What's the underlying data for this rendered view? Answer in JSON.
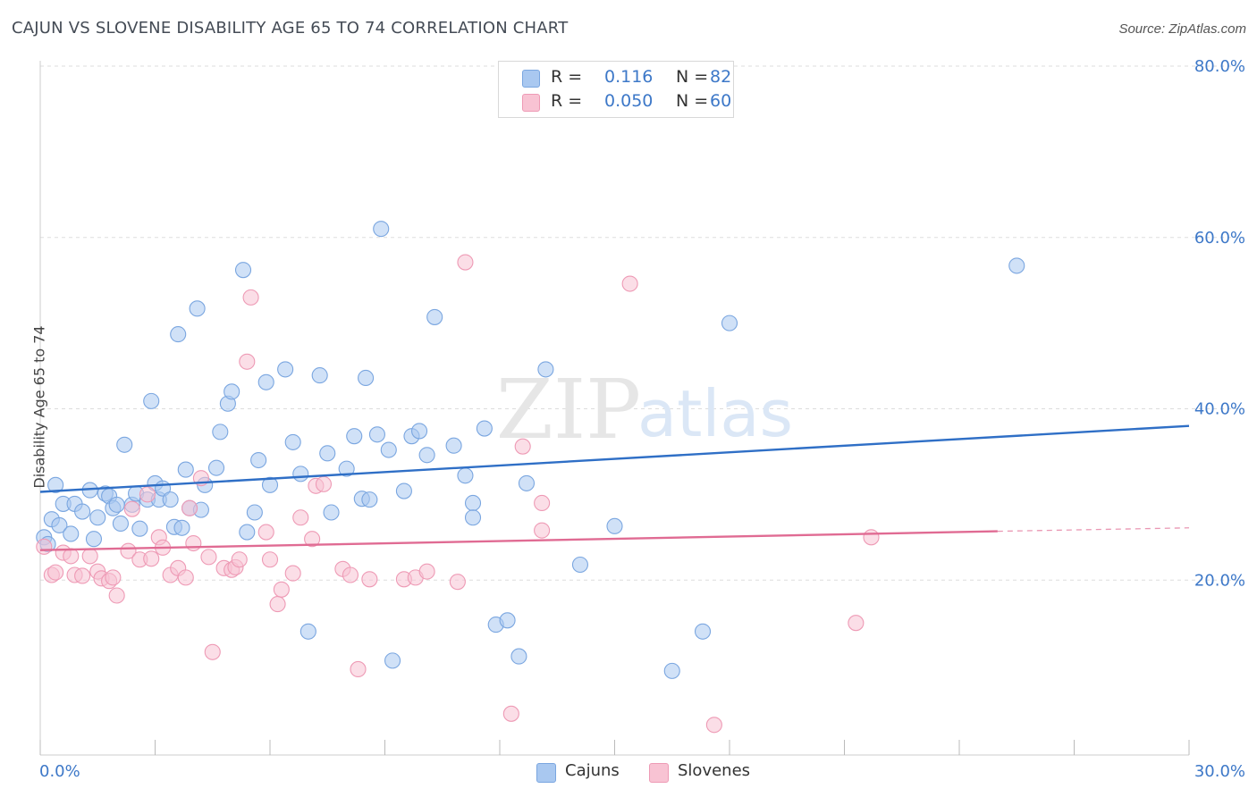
{
  "title": "CAJUN VS SLOVENE DISABILITY AGE 65 TO 74 CORRELATION CHART",
  "source": "Source: ZipAtlas.com",
  "watermark": {
    "zip": "ZIP",
    "atlas": "atlas"
  },
  "legend": {
    "rows": [
      {
        "r_label": "R =",
        "r_value": "0.116",
        "n_label": "N =",
        "n_value": "82",
        "color": "#a9c8f0",
        "border": "#7aa6e0"
      },
      {
        "r_label": "R =",
        "r_value": "0.050",
        "n_label": "N =",
        "n_value": "60",
        "color": "#f8c3d3",
        "border": "#ee9ab5"
      }
    ]
  },
  "bottom_legend": [
    {
      "label": "Cajuns",
      "color": "#a9c8f0",
      "border": "#7aa6e0"
    },
    {
      "label": "Slovenes",
      "color": "#f8c3d3",
      "border": "#ee9ab5"
    }
  ],
  "chart_data": {
    "type": "scatter",
    "title": "CAJUN VS SLOVENE DISABILITY AGE 65 TO 74 CORRELATION CHART",
    "xlabel": "",
    "ylabel": "Disability Age 65 to 74",
    "xlim": [
      0,
      30
    ],
    "ylim": [
      0,
      80
    ],
    "x_tick_labels": [
      "0.0%",
      "30.0%"
    ],
    "y_ticks": [
      20,
      40,
      60,
      80
    ],
    "y_tick_labels": [
      "20.0%",
      "40.0%",
      "60.0%",
      "80.0%"
    ],
    "grid": true,
    "legend_position": "top-center",
    "series": [
      {
        "name": "Cajuns",
        "color": "#7aa6e0",
        "fill": "#a9c8f0",
        "trend": {
          "x": [
            0,
            30
          ],
          "y": [
            30.3,
            38.0
          ],
          "color": "#2f6fc6"
        },
        "points": [
          [
            0.1,
            25.0
          ],
          [
            0.2,
            24.2
          ],
          [
            0.3,
            27.1
          ],
          [
            0.4,
            31.1
          ],
          [
            0.5,
            26.4
          ],
          [
            0.6,
            28.9
          ],
          [
            0.8,
            25.4
          ],
          [
            0.9,
            28.9
          ],
          [
            1.1,
            28.0
          ],
          [
            1.3,
            30.5
          ],
          [
            1.4,
            24.8
          ],
          [
            1.5,
            27.3
          ],
          [
            1.7,
            30.1
          ],
          [
            1.8,
            29.8
          ],
          [
            1.9,
            28.4
          ],
          [
            2.0,
            28.8
          ],
          [
            2.1,
            26.6
          ],
          [
            2.2,
            35.8
          ],
          [
            2.4,
            28.8
          ],
          [
            2.5,
            30.1
          ],
          [
            2.6,
            26.0
          ],
          [
            2.8,
            29.4
          ],
          [
            2.9,
            40.9
          ],
          [
            3.0,
            31.3
          ],
          [
            3.1,
            29.4
          ],
          [
            3.2,
            30.7
          ],
          [
            3.4,
            29.4
          ],
          [
            3.5,
            26.2
          ],
          [
            3.6,
            48.7
          ],
          [
            3.7,
            26.1
          ],
          [
            3.8,
            32.9
          ],
          [
            3.9,
            28.4
          ],
          [
            4.1,
            51.7
          ],
          [
            4.2,
            28.2
          ],
          [
            4.3,
            31.1
          ],
          [
            4.6,
            33.1
          ],
          [
            4.7,
            37.3
          ],
          [
            4.9,
            40.6
          ],
          [
            5.0,
            42.0
          ],
          [
            5.3,
            56.2
          ],
          [
            5.4,
            25.6
          ],
          [
            5.6,
            27.9
          ],
          [
            5.7,
            34.0
          ],
          [
            5.9,
            43.1
          ],
          [
            6.0,
            31.1
          ],
          [
            6.4,
            44.6
          ],
          [
            6.6,
            36.1
          ],
          [
            6.8,
            32.4
          ],
          [
            7.0,
            14.0
          ],
          [
            7.3,
            43.9
          ],
          [
            7.5,
            34.8
          ],
          [
            7.6,
            27.9
          ],
          [
            8.0,
            33.0
          ],
          [
            8.2,
            36.8
          ],
          [
            8.4,
            29.5
          ],
          [
            8.5,
            43.6
          ],
          [
            8.6,
            29.4
          ],
          [
            8.8,
            37.0
          ],
          [
            8.9,
            61.0
          ],
          [
            9.1,
            35.2
          ],
          [
            9.2,
            10.6
          ],
          [
            9.5,
            30.4
          ],
          [
            9.7,
            36.8
          ],
          [
            9.9,
            37.4
          ],
          [
            10.1,
            34.6
          ],
          [
            10.3,
            50.7
          ],
          [
            10.8,
            35.7
          ],
          [
            11.1,
            32.2
          ],
          [
            11.3,
            29.0
          ],
          [
            11.3,
            27.3
          ],
          [
            11.6,
            37.7
          ],
          [
            11.9,
            14.8
          ],
          [
            12.2,
            15.3
          ],
          [
            12.5,
            11.1
          ],
          [
            12.7,
            31.3
          ],
          [
            13.2,
            44.6
          ],
          [
            14.1,
            21.8
          ],
          [
            15.0,
            26.3
          ],
          [
            16.5,
            9.4
          ],
          [
            17.3,
            14.0
          ],
          [
            18.0,
            50.0
          ],
          [
            25.5,
            56.7
          ]
        ]
      },
      {
        "name": "Slovenes",
        "color": "#ee9ab5",
        "fill": "#f8c3d3",
        "trend": {
          "x": [
            0,
            25
          ],
          "y": [
            23.5,
            25.7
          ],
          "color": "#e06b93"
        },
        "trend_dashed": {
          "x": [
            25,
            30
          ],
          "y": [
            25.7,
            26.1
          ]
        },
        "points": [
          [
            0.1,
            23.9
          ],
          [
            0.3,
            20.6
          ],
          [
            0.4,
            20.9
          ],
          [
            0.6,
            23.2
          ],
          [
            0.8,
            22.8
          ],
          [
            0.9,
            20.6
          ],
          [
            1.1,
            20.5
          ],
          [
            1.3,
            22.8
          ],
          [
            1.5,
            21.0
          ],
          [
            1.6,
            20.2
          ],
          [
            1.8,
            19.9
          ],
          [
            1.9,
            20.3
          ],
          [
            2.0,
            18.2
          ],
          [
            2.3,
            23.4
          ],
          [
            2.4,
            28.3
          ],
          [
            2.6,
            22.4
          ],
          [
            2.8,
            30.0
          ],
          [
            2.9,
            22.5
          ],
          [
            3.1,
            25.0
          ],
          [
            3.2,
            23.8
          ],
          [
            3.4,
            20.6
          ],
          [
            3.6,
            21.4
          ],
          [
            3.8,
            20.3
          ],
          [
            3.9,
            28.4
          ],
          [
            4.0,
            24.3
          ],
          [
            4.2,
            31.9
          ],
          [
            4.4,
            22.7
          ],
          [
            4.5,
            11.6
          ],
          [
            4.8,
            21.4
          ],
          [
            5.0,
            21.2
          ],
          [
            5.1,
            21.5
          ],
          [
            5.2,
            22.4
          ],
          [
            5.5,
            53.0
          ],
          [
            5.4,
            45.5
          ],
          [
            5.9,
            25.6
          ],
          [
            6.0,
            22.4
          ],
          [
            6.2,
            17.2
          ],
          [
            6.3,
            18.9
          ],
          [
            6.6,
            20.8
          ],
          [
            6.8,
            27.3
          ],
          [
            7.2,
            31.0
          ],
          [
            7.4,
            31.2
          ],
          [
            7.1,
            24.8
          ],
          [
            7.9,
            21.3
          ],
          [
            8.1,
            20.6
          ],
          [
            8.3,
            9.6
          ],
          [
            8.6,
            20.1
          ],
          [
            9.5,
            20.1
          ],
          [
            9.8,
            20.3
          ],
          [
            10.1,
            21.0
          ],
          [
            10.9,
            19.8
          ],
          [
            11.1,
            57.1
          ],
          [
            12.3,
            4.4
          ],
          [
            12.6,
            35.6
          ],
          [
            13.1,
            25.8
          ],
          [
            13.1,
            29.0
          ],
          [
            15.4,
            54.6
          ],
          [
            17.6,
            3.1
          ],
          [
            21.3,
            15.0
          ],
          [
            21.7,
            25.0
          ]
        ]
      }
    ]
  }
}
